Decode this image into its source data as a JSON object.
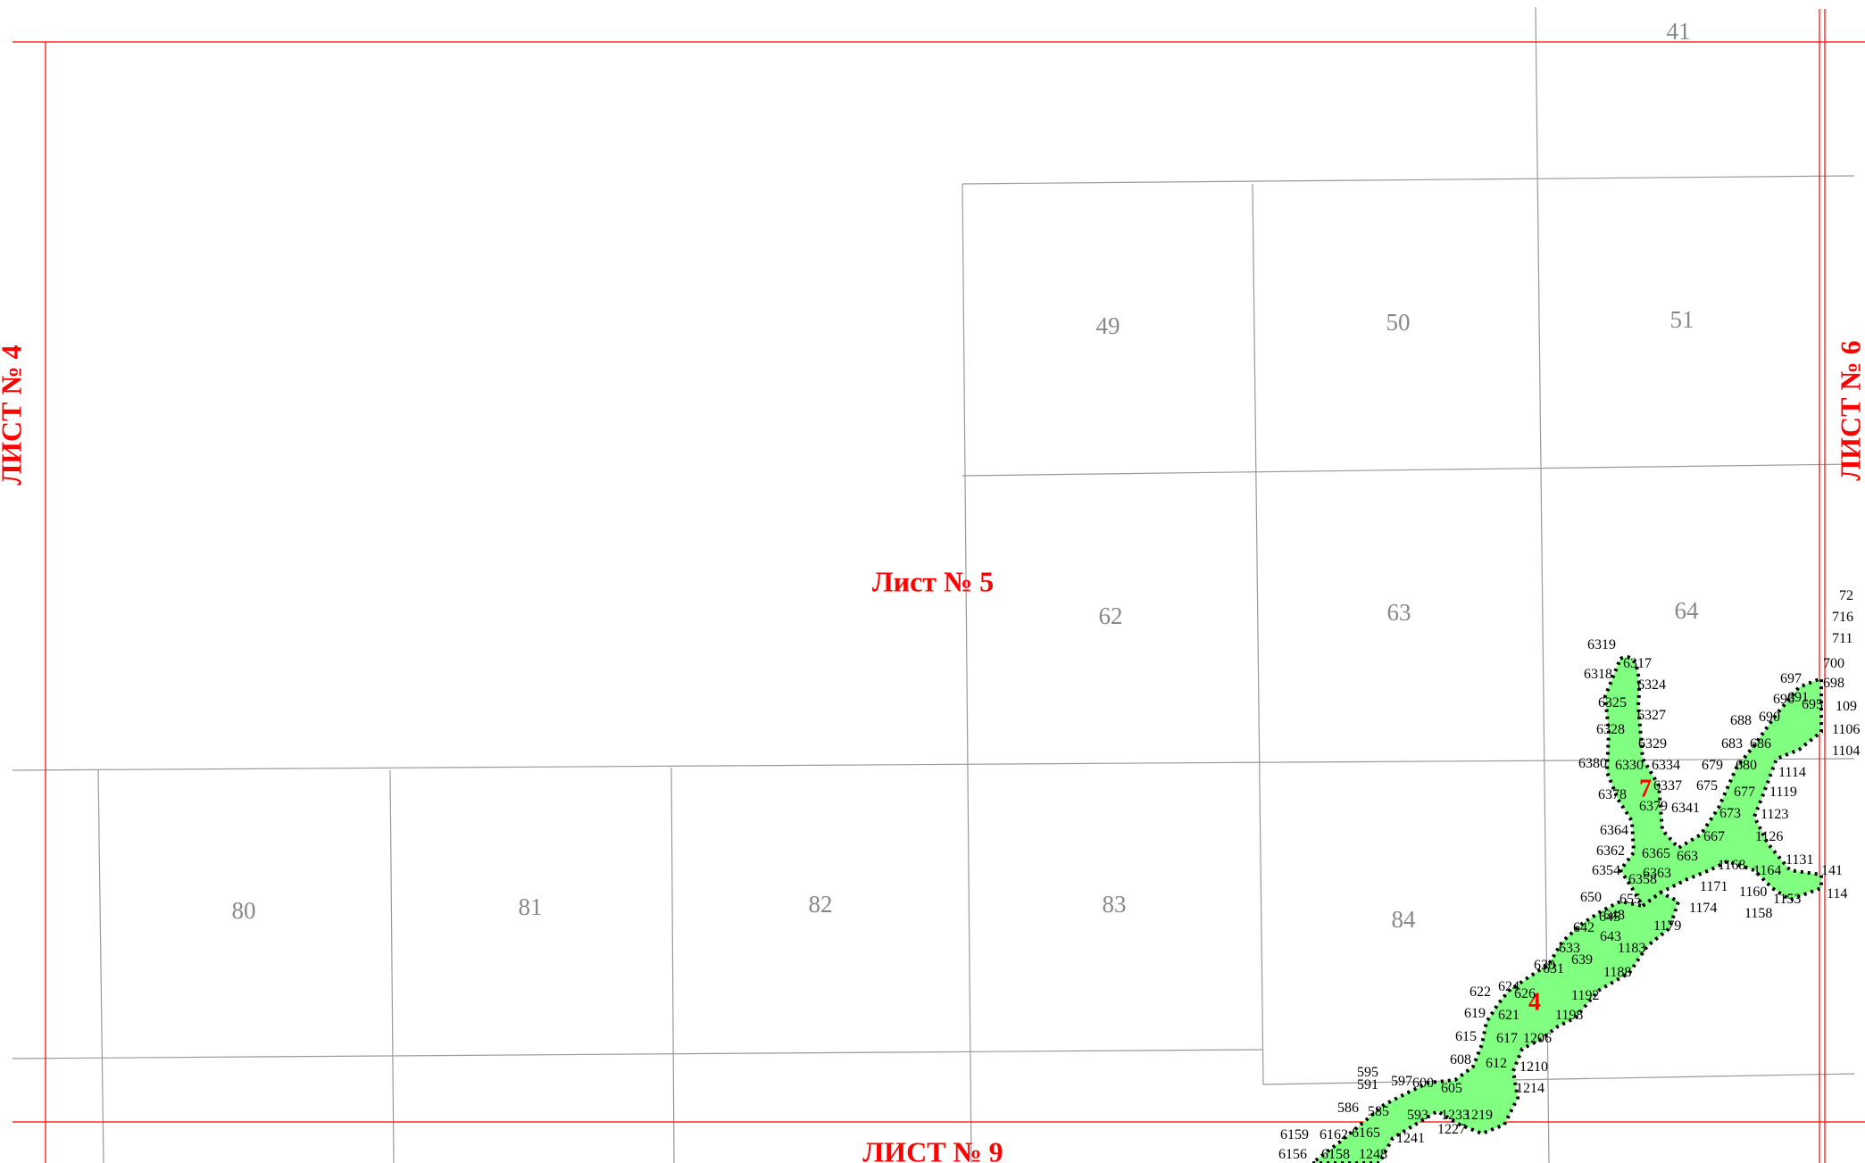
{
  "sheets": {
    "left": "ЛИСТ № 4",
    "right": "ЛИСТ № 6",
    "current": "Лист № 5",
    "bottom": "ЛИСТ № 9"
  },
  "cells": [
    {
      "id": "41",
      "label": "41"
    },
    {
      "id": "49",
      "label": "49"
    },
    {
      "id": "50",
      "label": "50"
    },
    {
      "id": "51",
      "label": "51"
    },
    {
      "id": "62",
      "label": "62"
    },
    {
      "id": "63",
      "label": "63"
    },
    {
      "id": "64",
      "label": "64"
    },
    {
      "id": "80",
      "label": "80"
    },
    {
      "id": "81",
      "label": "81"
    },
    {
      "id": "82",
      "label": "82"
    },
    {
      "id": "83",
      "label": "83"
    },
    {
      "id": "84",
      "label": "84"
    }
  ],
  "zones": [
    {
      "id": "7",
      "label": "7"
    },
    {
      "id": "4",
      "label": "4"
    }
  ],
  "points": [
    "6319",
    "6317",
    "6324",
    "6318",
    "6325",
    "6327",
    "6328",
    "6329",
    "6380",
    "6330",
    "6334",
    "6337",
    "6378",
    "6379",
    "6341",
    "6364",
    "6365",
    "6362",
    "6363",
    "6354",
    "6358",
    "697",
    "698",
    "696",
    "695",
    "109",
    "688",
    "690",
    "691",
    "683",
    "686",
    "1106",
    "1104",
    "679",
    "680",
    "1114",
    "675",
    "677",
    "1119",
    "673",
    "1123",
    "667",
    "663",
    "1126",
    "1168",
    "1164",
    "1131",
    "141",
    "1171",
    "1160",
    "1153",
    "114",
    "650",
    "655",
    "1174",
    "1158",
    "645",
    "648",
    "642",
    "643",
    "1179",
    "633",
    "1183",
    "630",
    "631",
    "639",
    "1188",
    "622",
    "624",
    "626",
    "1192",
    "619",
    "621",
    "1198",
    "615",
    "617",
    "1206",
    "608",
    "612",
    "1210",
    "595",
    "591",
    "597",
    "600",
    "605",
    "1214",
    "586",
    "585",
    "593",
    "1233",
    "1219",
    "6159",
    "6162",
    "6165",
    "1227",
    "1241",
    "6156",
    "6158",
    "1248",
    "72",
    "716",
    "711",
    "700"
  ],
  "colors": {
    "sheet_border": "#ff0000",
    "grid": "#9a9a9a",
    "zone_fill": "#80ff80",
    "zone_outline": "#000000"
  }
}
